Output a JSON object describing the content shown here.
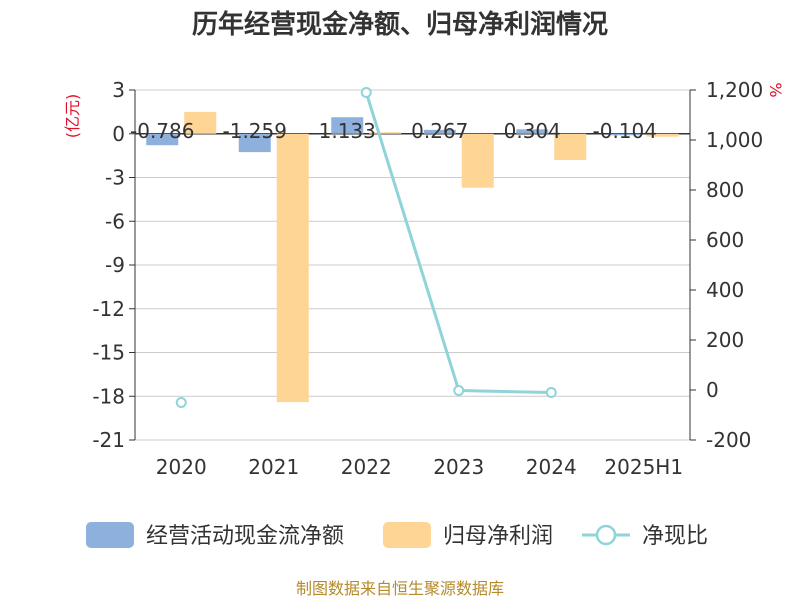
{
  "chart_data": {
    "type": "bar",
    "title": "历年经营现金净额、归母净利润情况",
    "categories": [
      "2020",
      "2021",
      "2022",
      "2023",
      "2024",
      "2025H1"
    ],
    "y_left_unit": "(亿元)",
    "y_right_unit": "%",
    "y_left_ticks": [
      "3",
      "0",
      "-3",
      "-6",
      "-9",
      "-12",
      "-15",
      "-18",
      "-21"
    ],
    "y_right_ticks": [
      "1,200",
      "1,000",
      "800",
      "600",
      "400",
      "200",
      "0",
      "-200"
    ],
    "ylim_left": [
      -21,
      3
    ],
    "ylim_right": [
      -200,
      1200
    ],
    "series": [
      {
        "name": "经营活动现金流净额",
        "type": "bar",
        "axis": "left",
        "color": "#8eb0dc",
        "values": [
          -0.786,
          -1.259,
          1.133,
          0.267,
          0.304,
          -0.104
        ],
        "labels": [
          "-0.786",
          "-1.259",
          "1.133",
          "0.267",
          "0.304",
          "-0.104"
        ]
      },
      {
        "name": "归母净利润",
        "type": "bar",
        "axis": "left",
        "color": "#fed595",
        "values": [
          1.5,
          -18.4,
          0.1,
          -3.7,
          -1.8,
          -0.2
        ]
      },
      {
        "name": "净现比",
        "type": "line",
        "axis": "right",
        "color": "#8ed4d8",
        "values": [
          -50,
          null,
          1190,
          -2,
          -10,
          null
        ]
      }
    ],
    "grid": true,
    "legend_position": "bottom"
  },
  "source": "制图数据来自恒生聚源数据库"
}
